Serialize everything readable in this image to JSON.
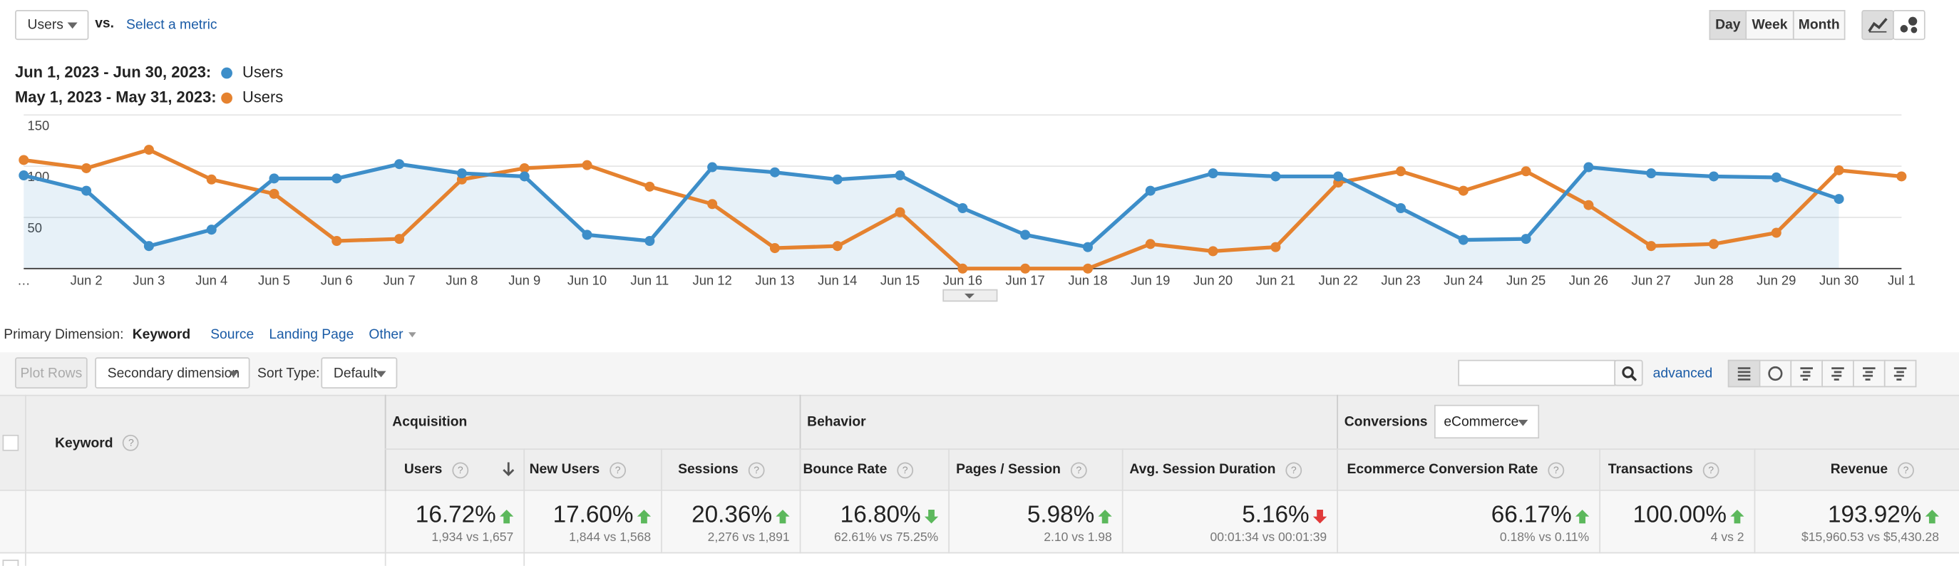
{
  "toolbar": {
    "metric": "Users",
    "vs": "vs.",
    "select": "Select a metric",
    "periods": [
      "Day",
      "Week",
      "Month"
    ],
    "active_period": "Day"
  },
  "chart_data": {
    "type": "line",
    "categories": [
      "…",
      "Jun 2",
      "Jun 3",
      "Jun 4",
      "Jun 5",
      "Jun 6",
      "Jun 7",
      "Jun 8",
      "Jun 9",
      "Jun 10",
      "Jun 11",
      "Jun 12",
      "Jun 13",
      "Jun 14",
      "Jun 15",
      "Jun 16",
      "Jun 17",
      "Jun 18",
      "Jun 19",
      "Jun 20",
      "Jun 21",
      "Jun 22",
      "Jun 23",
      "Jun 24",
      "Jun 25",
      "Jun 26",
      "Jun 27",
      "Jun 28",
      "Jun 29",
      "Jun 30",
      "Jul 1"
    ],
    "series": [
      {
        "name": "Users",
        "period": "Jun 1, 2023 - Jun 30, 2023:",
        "color": "#3d8ec9",
        "area": true,
        "values": [
          91,
          76,
          22,
          38,
          88,
          88,
          102,
          93,
          90,
          33,
          27,
          99,
          94,
          87,
          91,
          59,
          33,
          21,
          76,
          93,
          90,
          90,
          59,
          28,
          29,
          99,
          93,
          90,
          89,
          68,
          null
        ]
      },
      {
        "name": "Users",
        "period": "May 1, 2023 - May 31, 2023:",
        "color": "#e5822f",
        "area": false,
        "values": [
          106,
          98,
          116,
          87,
          73,
          27,
          29,
          87,
          98,
          101,
          80,
          63,
          20,
          22,
          55,
          0,
          0,
          0,
          24,
          17,
          21,
          84,
          95,
          76,
          95,
          62,
          22,
          24,
          35,
          96,
          90
        ]
      }
    ],
    "ylim": [
      0,
      150
    ],
    "yticks": [
      50,
      100,
      150
    ],
    "grid": true
  },
  "dimension": {
    "label": "Primary Dimension:",
    "options": [
      "Keyword",
      "Source",
      "Landing Page",
      "Other"
    ],
    "active": "Keyword"
  },
  "controls": {
    "plot_rows": "Plot Rows",
    "secondary": "Secondary dimension",
    "sort_label": "Sort Type:",
    "sort": "Default",
    "advanced": "advanced"
  },
  "table": {
    "key_column": "Keyword",
    "groups": [
      {
        "name": "Acquisition",
        "span": 3
      },
      {
        "name": "Behavior",
        "span": 3
      },
      {
        "name": "Conversions",
        "span": 3,
        "select": "eCommerce"
      }
    ],
    "columns": [
      {
        "name": "Users",
        "change": "16.72%",
        "trend": "up",
        "good": true,
        "detail": "1,934 vs 1,657",
        "sorted": true
      },
      {
        "name": "New Users",
        "change": "17.60%",
        "trend": "up",
        "good": true,
        "detail": "1,844 vs 1,568",
        "sorted": false
      },
      {
        "name": "Sessions",
        "change": "20.36%",
        "trend": "up",
        "good": true,
        "detail": "2,276 vs 1,891",
        "sorted": false
      },
      {
        "name": "Bounce Rate",
        "change": "16.80%",
        "trend": "down",
        "good": true,
        "detail": "62.61% vs 75.25%",
        "sorted": false
      },
      {
        "name": "Pages / Session",
        "change": "5.98%",
        "trend": "up",
        "good": true,
        "detail": "2.10 vs 1.98",
        "sorted": false
      },
      {
        "name": "Avg. Session Duration",
        "change": "5.16%",
        "trend": "down",
        "good": false,
        "detail": "00:01:34 vs 00:01:39",
        "sorted": false
      },
      {
        "name": "Ecommerce Conversion Rate",
        "change": "66.17%",
        "trend": "up",
        "good": true,
        "detail": "0.18% vs 0.11%",
        "sorted": false
      },
      {
        "name": "Transactions",
        "change": "100.00%",
        "trend": "up",
        "good": true,
        "detail": "4 vs 2",
        "sorted": false
      },
      {
        "name": "Revenue",
        "change": "193.92%",
        "trend": "up",
        "good": true,
        "detail": "$15,960.53 vs $5,430.28",
        "sorted": false
      }
    ]
  }
}
